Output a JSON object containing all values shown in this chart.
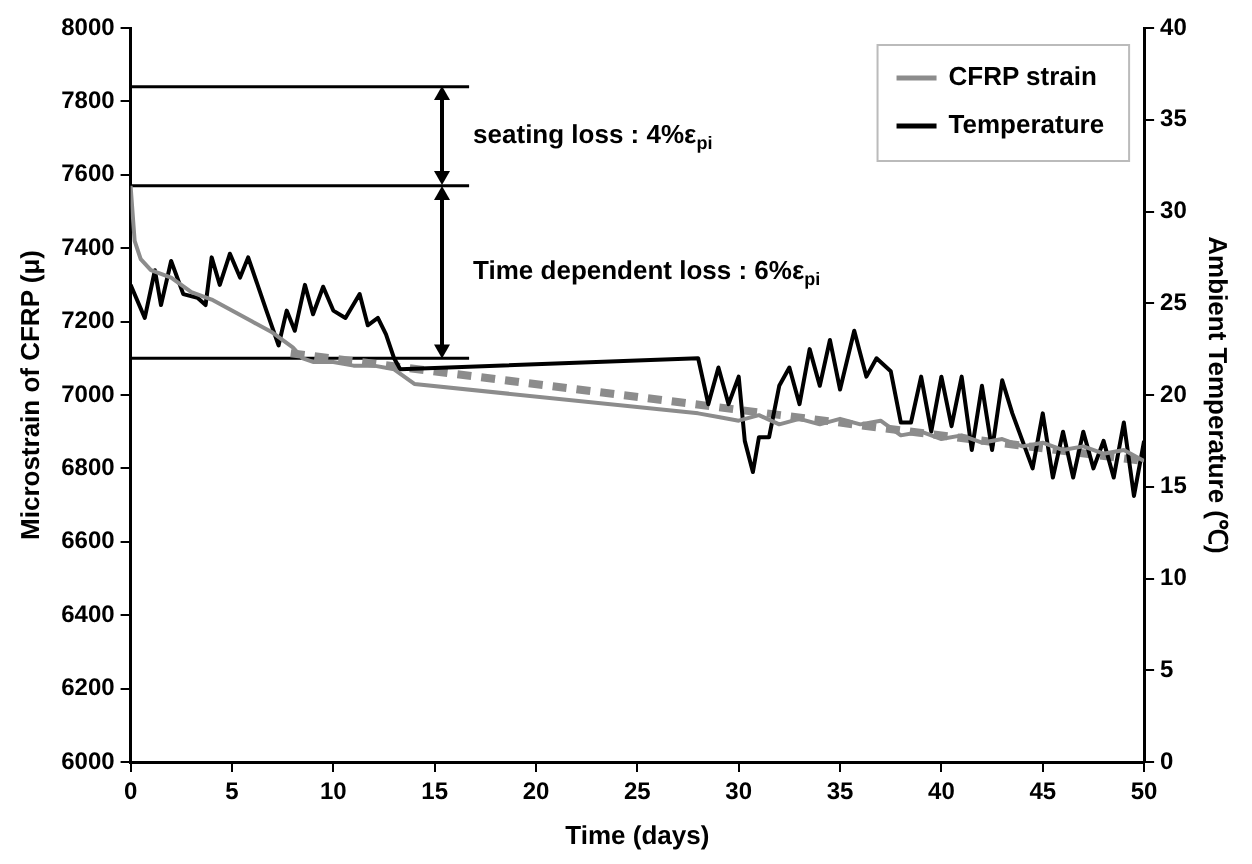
{
  "chart_data": {
    "type": "line",
    "xlabel": "Time (days)",
    "ylabel": "Microstrain of CFRP (μ)",
    "y2label": "Ambient Temperature (℃)",
    "xlim": [
      0,
      50
    ],
    "xticks": [
      0,
      5,
      10,
      15,
      20,
      25,
      30,
      35,
      40,
      45,
      50
    ],
    "ylim": [
      6000,
      8000
    ],
    "yticks": [
      6000,
      6200,
      6400,
      6600,
      6800,
      7000,
      7200,
      7400,
      7600,
      7800,
      8000
    ],
    "y2lim": [
      0,
      40
    ],
    "y2ticks": [
      0,
      5,
      10,
      15,
      20,
      25,
      30,
      35,
      40
    ],
    "grid": false,
    "legend": "top right",
    "marker": "none",
    "series": [
      {
        "name": "CFRP strain",
        "color": "#8c8c8c",
        "x": [
          0,
          0.2,
          0.5,
          1,
          2,
          3,
          4,
          5,
          6,
          7,
          8,
          8.5,
          9,
          10,
          11,
          12,
          13,
          14,
          28,
          29,
          30,
          31,
          32,
          33,
          34,
          35,
          36,
          37,
          38,
          39,
          40,
          41,
          42,
          43,
          44,
          45,
          46,
          47,
          48,
          49,
          50
        ],
        "values": [
          7570,
          7420,
          7370,
          7340,
          7320,
          7280,
          7260,
          7230,
          7200,
          7170,
          7130,
          7100,
          7090,
          7090,
          7080,
          7080,
          7070,
          7030,
          6950,
          6940,
          6930,
          6945,
          6920,
          6935,
          6920,
          6935,
          6920,
          6930,
          6890,
          6900,
          6880,
          6890,
          6870,
          6880,
          6860,
          6870,
          6850,
          6860,
          6840,
          6850,
          6820
        ]
      },
      {
        "name": "Temperature",
        "color": "#000000",
        "axis": "y2",
        "x": [
          0,
          0.7,
          1.2,
          1.5,
          2,
          2.6,
          3.3,
          3.7,
          4,
          4.4,
          4.9,
          5.4,
          5.8,
          6.7,
          7.3,
          7.7,
          8.1,
          8.6,
          9,
          9.5,
          10,
          10.6,
          11.3,
          11.7,
          12.2,
          12.6,
          13,
          13.3,
          28,
          28.5,
          29,
          29.5,
          30,
          30.3,
          30.7,
          31,
          31.5,
          32,
          32.5,
          33,
          33.5,
          34,
          34.5,
          35,
          35.7,
          36.3,
          36.8,
          37.5,
          38,
          38.5,
          39,
          39.5,
          40,
          40.5,
          41,
          41.5,
          42,
          42.5,
          43,
          43.5,
          44,
          44.5,
          45,
          45.5,
          46,
          46.5,
          47,
          47.5,
          48,
          48.5,
          49,
          49.5,
          50
        ],
        "values": [
          26,
          24.2,
          26.8,
          24.9,
          27.3,
          25.5,
          25.3,
          24.9,
          27.5,
          26,
          27.7,
          26.4,
          27.5,
          24.6,
          22.7,
          24.6,
          23.5,
          26,
          24.4,
          25.9,
          24.6,
          24.2,
          25.5,
          23.8,
          24.2,
          23.3,
          22,
          21.4,
          22,
          19.5,
          21.5,
          19.5,
          21,
          17.5,
          15.8,
          17.7,
          17.7,
          20.5,
          21.5,
          19.5,
          22.5,
          20.5,
          23,
          20.3,
          23.5,
          21,
          22,
          21.3,
          18.5,
          18.5,
          21,
          18,
          21,
          18.3,
          21,
          17,
          20.5,
          17,
          20.8,
          19,
          17.5,
          16,
          19,
          15.5,
          18,
          15.5,
          18,
          16,
          17.5,
          15.5,
          18.5,
          14.5,
          17.5
        ]
      },
      {
        "color": "#8c8c8c",
        "line_style": "dashed",
        "x": [
          7.9,
          50
        ],
        "values": [
          7114,
          6820
        ]
      },
      {
        "color": "#000000",
        "x": [
          0,
          16.7
        ],
        "values": [
          7840,
          7840
        ]
      },
      {
        "color": "#000000",
        "x": [
          0,
          16.7
        ],
        "values": [
          7570,
          7570
        ]
      },
      {
        "color": "#000000",
        "x": [
          0,
          16.7
        ],
        "values": [
          7100,
          7100
        ]
      }
    ],
    "annotations": [
      "seating loss : 4%ε$_{pi}$",
      "Time dependent loss : 6%ε$_{pi}$"
    ]
  }
}
